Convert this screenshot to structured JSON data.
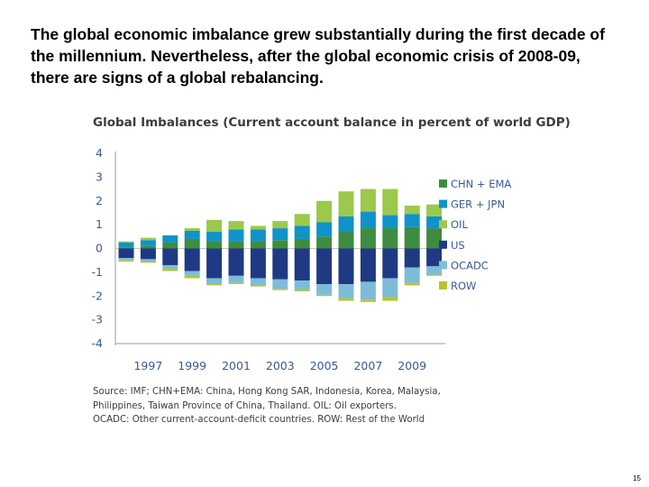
{
  "headline": "The global economic imbalance grew substantially during the first decade of the millennium. Nevertheless, after the global economic crisis of 2008-09, there are signs of a global rebalancing.",
  "page_number": "15",
  "source_note": [
    "Source: IMF; CHN+EMA: China, Hong Kong SAR, Indonesia, Korea, Malaysia,",
    "Philippines, Taiwan Province of China, Thailand.  OIL: Oil exporters.",
    "OCADC: Other current-account-deficit countries.  ROW: Rest of the World"
  ],
  "chart_data": {
    "type": "bar",
    "stacked": true,
    "title": "Global Imbalances (Current account balance in percent of world GDP)",
    "xlabel": "",
    "ylabel": "",
    "ylim": [
      -4,
      4
    ],
    "yticks": [
      4,
      3,
      2,
      1,
      0,
      -1,
      -2,
      -3,
      -4
    ],
    "categories": [
      "1996",
      "1997",
      "1998",
      "1999",
      "2000",
      "2001",
      "2002",
      "2003",
      "2004",
      "2005",
      "2006",
      "2007",
      "2008",
      "2009",
      "2010"
    ],
    "x_tick_labels": [
      "1997",
      "1999",
      "2001",
      "2003",
      "2005",
      "2007",
      "2009"
    ],
    "legend_position": "right",
    "series": [
      {
        "name": "CHN + EMA",
        "color": "#3d8c40",
        "values": [
          0.05,
          0.1,
          0.25,
          0.4,
          0.3,
          0.3,
          0.3,
          0.35,
          0.4,
          0.5,
          0.7,
          0.85,
          0.85,
          0.9,
          0.85
        ]
      },
      {
        "name": "GER + JPN",
        "color": "#0f93c9",
        "values": [
          0.2,
          0.25,
          0.3,
          0.35,
          0.4,
          0.5,
          0.5,
          0.5,
          0.55,
          0.6,
          0.65,
          0.7,
          0.55,
          0.55,
          0.5
        ]
      },
      {
        "name": "OIL",
        "color": "#9ac94c",
        "values": [
          0.05,
          0.1,
          0.0,
          0.1,
          0.5,
          0.35,
          0.15,
          0.3,
          0.5,
          0.9,
          1.05,
          0.95,
          1.1,
          0.35,
          0.5
        ]
      },
      {
        "name": "US",
        "color": "#1f3a83",
        "values": [
          -0.4,
          -0.45,
          -0.7,
          -0.95,
          -1.25,
          -1.15,
          -1.25,
          -1.3,
          -1.35,
          -1.5,
          -1.5,
          -1.4,
          -1.25,
          -0.8,
          -0.75
        ]
      },
      {
        "name": "OCADC",
        "color": "#7dbcd9",
        "values": [
          -0.1,
          -0.1,
          -0.15,
          -0.2,
          -0.25,
          -0.3,
          -0.3,
          -0.4,
          -0.4,
          -0.45,
          -0.6,
          -0.75,
          -0.8,
          -0.65,
          -0.35
        ]
      },
      {
        "name": "ROW",
        "color": "#b7c42c",
        "values": [
          -0.05,
          -0.05,
          -0.1,
          -0.1,
          -0.05,
          -0.05,
          -0.05,
          -0.05,
          -0.05,
          -0.05,
          -0.1,
          -0.1,
          -0.15,
          -0.1,
          -0.05
        ]
      }
    ]
  }
}
